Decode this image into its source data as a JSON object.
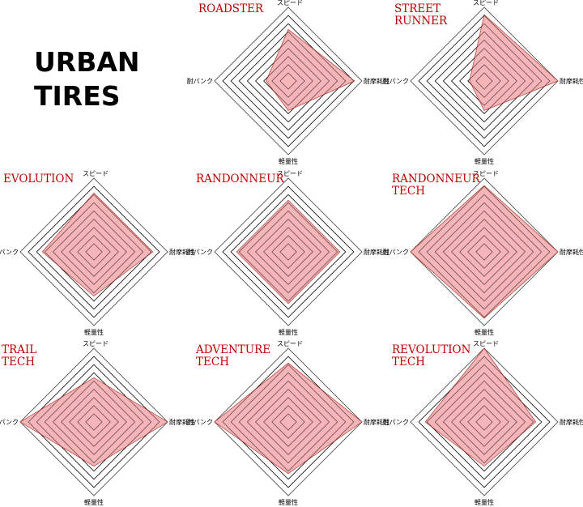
{
  "heading": {
    "line1": "URBAN",
    "line2": "TIRES"
  },
  "colors": {
    "title": "#c00000",
    "area_fill": "#f5a8ab",
    "area_stroke": "#c0392b",
    "grid": "#000000"
  },
  "chart_data": [
    {
      "type": "radar",
      "title": [
        "ROADSTER"
      ],
      "axes": [
        "スピード",
        "耐摩耗性",
        "軽量性",
        "耐パンク"
      ],
      "max": 10,
      "values": [
        7,
        9,
        4,
        3
      ]
    },
    {
      "type": "radar",
      "title": [
        "STREET",
        "RUNNER"
      ],
      "axes": [
        "スピード",
        "耐摩耗性",
        "軽量性",
        "耐パンク"
      ],
      "max": 10,
      "values": [
        9,
        10,
        4,
        2
      ]
    },
    {
      "type": "radar",
      "title": [
        "EVOLUTION"
      ],
      "axes": [
        "スピード",
        "耐摩耗性",
        "軽量性",
        "耐パンク"
      ],
      "max": 10,
      "values": [
        8,
        8,
        6,
        7
      ]
    },
    {
      "type": "radar",
      "title": [
        "RANDONNEUR"
      ],
      "axes": [
        "スピード",
        "耐摩耗性",
        "軽量性",
        "耐パンク"
      ],
      "max": 10,
      "values": [
        7,
        7,
        7,
        7
      ]
    },
    {
      "type": "radar",
      "title": [
        "RANDONNEUR",
        "TECH"
      ],
      "axes": [
        "スピード",
        "耐摩耗性",
        "軽量性",
        "耐パンク"
      ],
      "max": 10,
      "values": [
        9,
        10,
        9,
        10
      ]
    },
    {
      "type": "radar",
      "title": [
        "TRAIL",
        "TECH"
      ],
      "axes": [
        "スピード",
        "耐摩耗性",
        "軽量性",
        "耐パンク"
      ],
      "max": 10,
      "values": [
        6,
        10,
        6,
        10
      ]
    },
    {
      "type": "radar",
      "title": [
        "ADVENTURE",
        "TECH"
      ],
      "axes": [
        "スピード",
        "耐摩耗性",
        "軽量性",
        "耐パンク"
      ],
      "max": 10,
      "values": [
        8,
        10,
        7,
        10
      ]
    },
    {
      "type": "radar",
      "title": [
        "REVOLUTION",
        "TECH"
      ],
      "axes": [
        "スピード",
        "耐摩耗性",
        "軽量性",
        "耐パンク"
      ],
      "max": 10,
      "values": [
        10,
        7,
        6,
        8
      ]
    }
  ]
}
